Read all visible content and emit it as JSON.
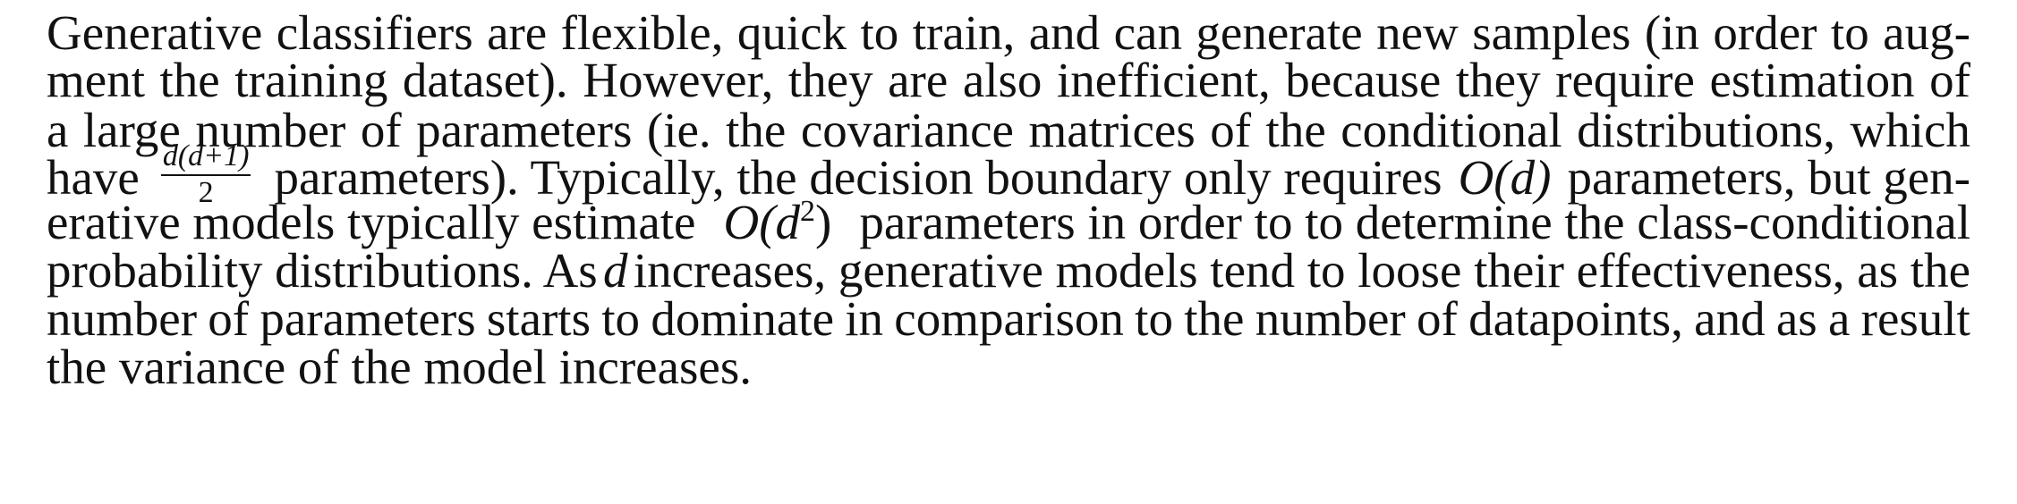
{
  "paragraph": {
    "lines": [
      "Generative classifiers are flexible, quick to train, and can generate new samples (in order to aug-",
      "ment the training dataset). However, they are also inefficient, because they require estimation of",
      "a large number of parameters (ie. the covariance matrices of the conditional distributions, which",
      "have d(d+1)/2 parameters). Typically, the decision boundary only requires O(d) parameters, but gen-",
      "erative models typically estimate O(d²) parameters in order to to determine the class-conditional",
      "probability distributions. As d increases, generative models tend to loose their effectiveness, as the",
      "number of parameters starts to dominate in comparison to the number of datapoints, and as a result",
      "the variance of the model increases."
    ],
    "line4": {
      "before": "have",
      "frac_numerator": "d(d+1)",
      "frac_denominator": "2",
      "after_text": "parameters). Typically, the decision boundary only requires",
      "big_o_d": "O(d)",
      "tail": "parameters, but gen-"
    },
    "line5": {
      "before": "erative models typically estimate",
      "big_o": "O(d",
      "power": "2",
      "close": ")",
      "after": "parameters in order to to determine the class-conditional"
    },
    "line6": {
      "before": "probability distributions. As",
      "var": "d",
      "after": "increases, generative models tend to loose their effectiveness, as the"
    }
  }
}
